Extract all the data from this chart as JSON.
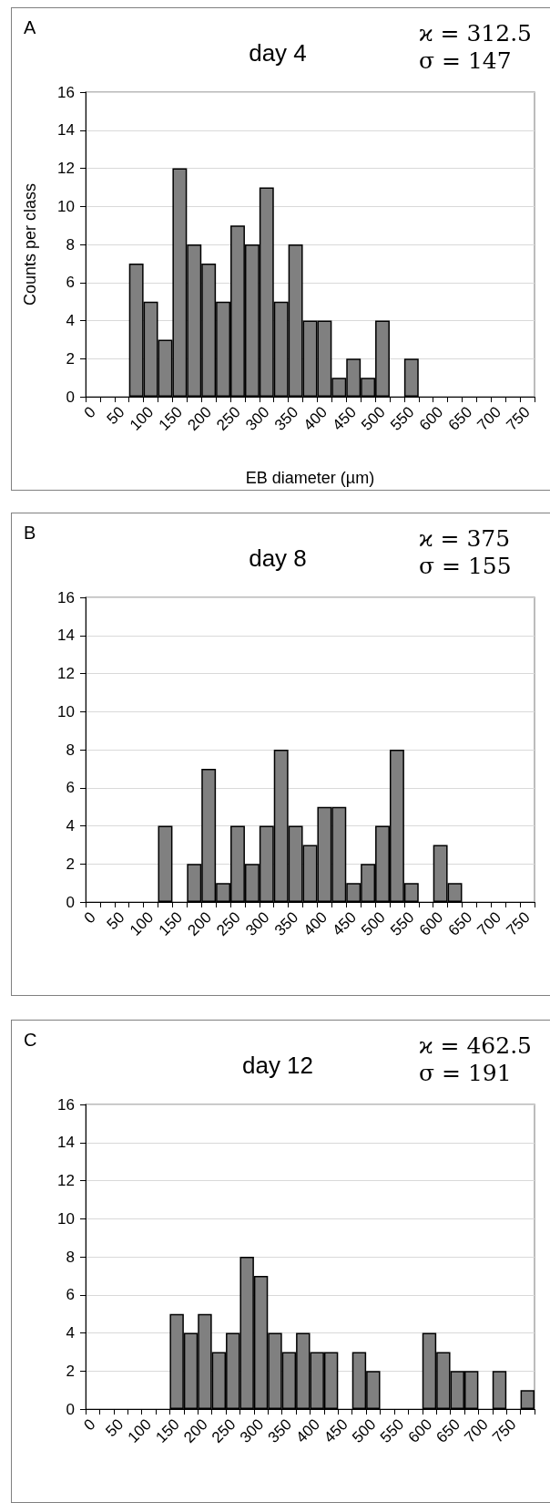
{
  "chart_data": [
    {
      "type": "bar",
      "title": "day 4",
      "xlabel": "EB diameter (µm)",
      "ylabel": "Counts per class",
      "annotations": [
        "A",
        "ϰ = 312.5",
        "σ = 147"
      ],
      "categories": [
        "0",
        null,
        "50",
        null,
        "100",
        null,
        "150",
        null,
        "200",
        null,
        "250",
        null,
        "300",
        null,
        "350",
        null,
        "400",
        null,
        "450",
        null,
        "500",
        null,
        "550",
        null,
        "600",
        null,
        "650",
        null,
        "700",
        null,
        "750"
      ],
      "values": [
        0,
        0,
        0,
        7,
        5,
        3,
        12,
        8,
        7,
        5,
        9,
        8,
        11,
        5,
        8,
        4,
        4,
        1,
        2,
        1,
        4,
        0,
        2,
        0,
        0,
        0,
        0,
        0,
        0,
        0,
        0
      ],
      "color": "#808080",
      "ylim": [
        0,
        16
      ],
      "yticks": [
        0,
        2,
        4,
        6,
        8,
        10,
        12,
        14,
        16
      ],
      "grid": "y"
    },
    {
      "type": "bar",
      "title": "day 8",
      "annotations": [
        "B",
        "ϰ = 375",
        "σ = 155"
      ],
      "categories": [
        "0",
        null,
        "50",
        null,
        "100",
        null,
        "150",
        null,
        "200",
        null,
        "250",
        null,
        "300",
        null,
        "350",
        null,
        "400",
        null,
        "450",
        null,
        "500",
        null,
        "550",
        null,
        "600",
        null,
        "650",
        null,
        "700",
        null,
        "750"
      ],
      "values": [
        0,
        0,
        0,
        0,
        0,
        4,
        0,
        2,
        7,
        1,
        4,
        2,
        4,
        8,
        4,
        3,
        5,
        5,
        1,
        2,
        4,
        8,
        1,
        0,
        3,
        1,
        0,
        0,
        0,
        0,
        0
      ],
      "color": "#808080",
      "ylim": [
        0,
        16
      ],
      "yticks": [
        0,
        2,
        4,
        6,
        8,
        10,
        12,
        14,
        16
      ],
      "grid": "y"
    },
    {
      "type": "bar",
      "title": "day 12",
      "annotations": [
        "C",
        "ϰ = 462.5",
        "σ = 191"
      ],
      "categories": [
        "0",
        null,
        "50",
        null,
        "100",
        null,
        "150",
        null,
        "200",
        null,
        "250",
        null,
        "300",
        null,
        "350",
        null,
        "400",
        null,
        "450",
        null,
        "500",
        null,
        "550",
        null,
        "600",
        null,
        "650",
        null,
        "700",
        null,
        "750",
        null
      ],
      "values": [
        0,
        0,
        0,
        0,
        0,
        0,
        5,
        4,
        5,
        3,
        4,
        8,
        7,
        4,
        3,
        4,
        3,
        3,
        0,
        3,
        2,
        0,
        0,
        0,
        4,
        3,
        2,
        2,
        0,
        2,
        0,
        1
      ],
      "color": "#808080",
      "ylim": [
        0,
        16
      ],
      "yticks": [
        0,
        2,
        4,
        6,
        8,
        10,
        12,
        14,
        16
      ],
      "grid": "y"
    }
  ]
}
